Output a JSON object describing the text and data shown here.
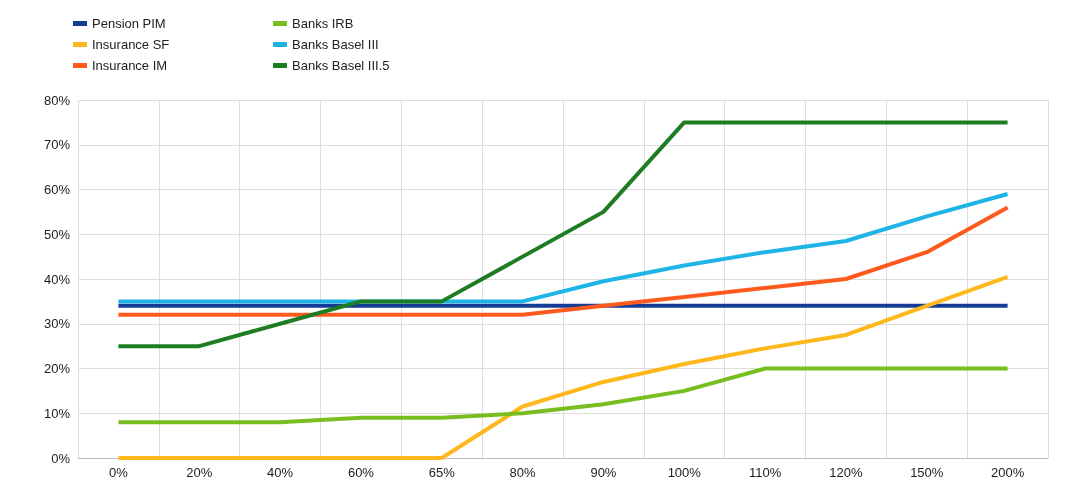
{
  "chart_data": {
    "type": "line",
    "categories": [
      "0%",
      "20%",
      "40%",
      "60%",
      "65%",
      "80%",
      "90%",
      "100%",
      "110%",
      "120%",
      "150%",
      "200%"
    ],
    "series": [
      {
        "name": "Pension PIM",
        "color": "#143c96",
        "values": [
          34,
          34,
          34,
          34,
          34,
          34,
          34,
          34,
          34,
          34,
          34,
          34
        ]
      },
      {
        "name": "Insurance SF",
        "color": "#ffb81c",
        "values": [
          0,
          0,
          0,
          0,
          0,
          11.5,
          17,
          21,
          24.5,
          27.5,
          34,
          40.5
        ]
      },
      {
        "name": "Insurance IM",
        "color": "#ff5a1e",
        "values": [
          32,
          32,
          32,
          32,
          32,
          32,
          34,
          36,
          38,
          40,
          46,
          56
        ]
      },
      {
        "name": "Banks IRB",
        "color": "#78be20",
        "values": [
          8,
          8,
          8,
          9,
          9,
          10,
          12,
          15,
          20,
          20,
          20,
          20
        ]
      },
      {
        "name": "Banks Basel III",
        "color": "#1eb4e6",
        "values": [
          35,
          35,
          35,
          35,
          35,
          35,
          39.5,
          43,
          46,
          48.5,
          54,
          59
        ]
      },
      {
        "name": "Banks Basel III.5",
        "color": "#1e7d23",
        "values": [
          25,
          25,
          30,
          35,
          35,
          45,
          55,
          75,
          75,
          75,
          75,
          75
        ]
      }
    ],
    "ylim": [
      0,
      80
    ],
    "yticks": [
      {
        "value": 0,
        "label": "0%"
      },
      {
        "value": 10,
        "label": "10%"
      },
      {
        "value": 20,
        "label": "20%"
      },
      {
        "value": 30,
        "label": "30%"
      },
      {
        "value": 40,
        "label": "40%"
      },
      {
        "value": 50,
        "label": "50%"
      },
      {
        "value": 60,
        "label": "60%"
      },
      {
        "value": 70,
        "label": "70%"
      },
      {
        "value": 80,
        "label": "80%"
      }
    ],
    "grid": true,
    "legend": "top left",
    "marker": "none",
    "line_style": "solid"
  }
}
